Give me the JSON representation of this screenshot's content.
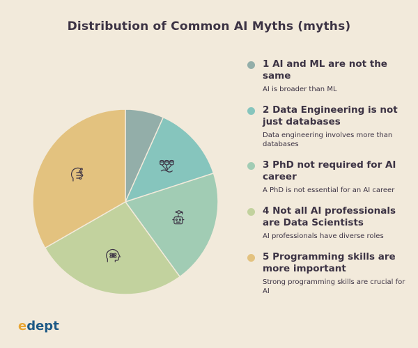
{
  "chart_data": {
    "type": "pie",
    "title": "Distribution of Common AI Myths (myths)",
    "categories": [
      "1 AI and ML are not the same",
      "2 Data Engineering is not just databases",
      "3 PhD not required for AI career",
      "4 Not all AI professionals are Data Scientists",
      "5 Programming skills are more important"
    ],
    "values": [
      6.7,
      13.3,
      20,
      26.7,
      33.3
    ],
    "colors": [
      "#93aea9",
      "#86c5bd",
      "#a1ccb4",
      "#c2d29e",
      "#e3c27f"
    ],
    "descriptions": [
      "AI is broader than ML",
      "Data engineering involves more than databases",
      "A PhD is not essential for an AI career",
      "AI professionals have diverse roles",
      "Strong programming skills are crucial for AI"
    ],
    "icons": [
      "",
      "database-network-icon",
      "graduation-robot-icon",
      "brain-atom-icon",
      "head-circuit-icon"
    ],
    "legend_position": "right"
  },
  "logo": {
    "e": "e",
    "rest": "dept"
  }
}
